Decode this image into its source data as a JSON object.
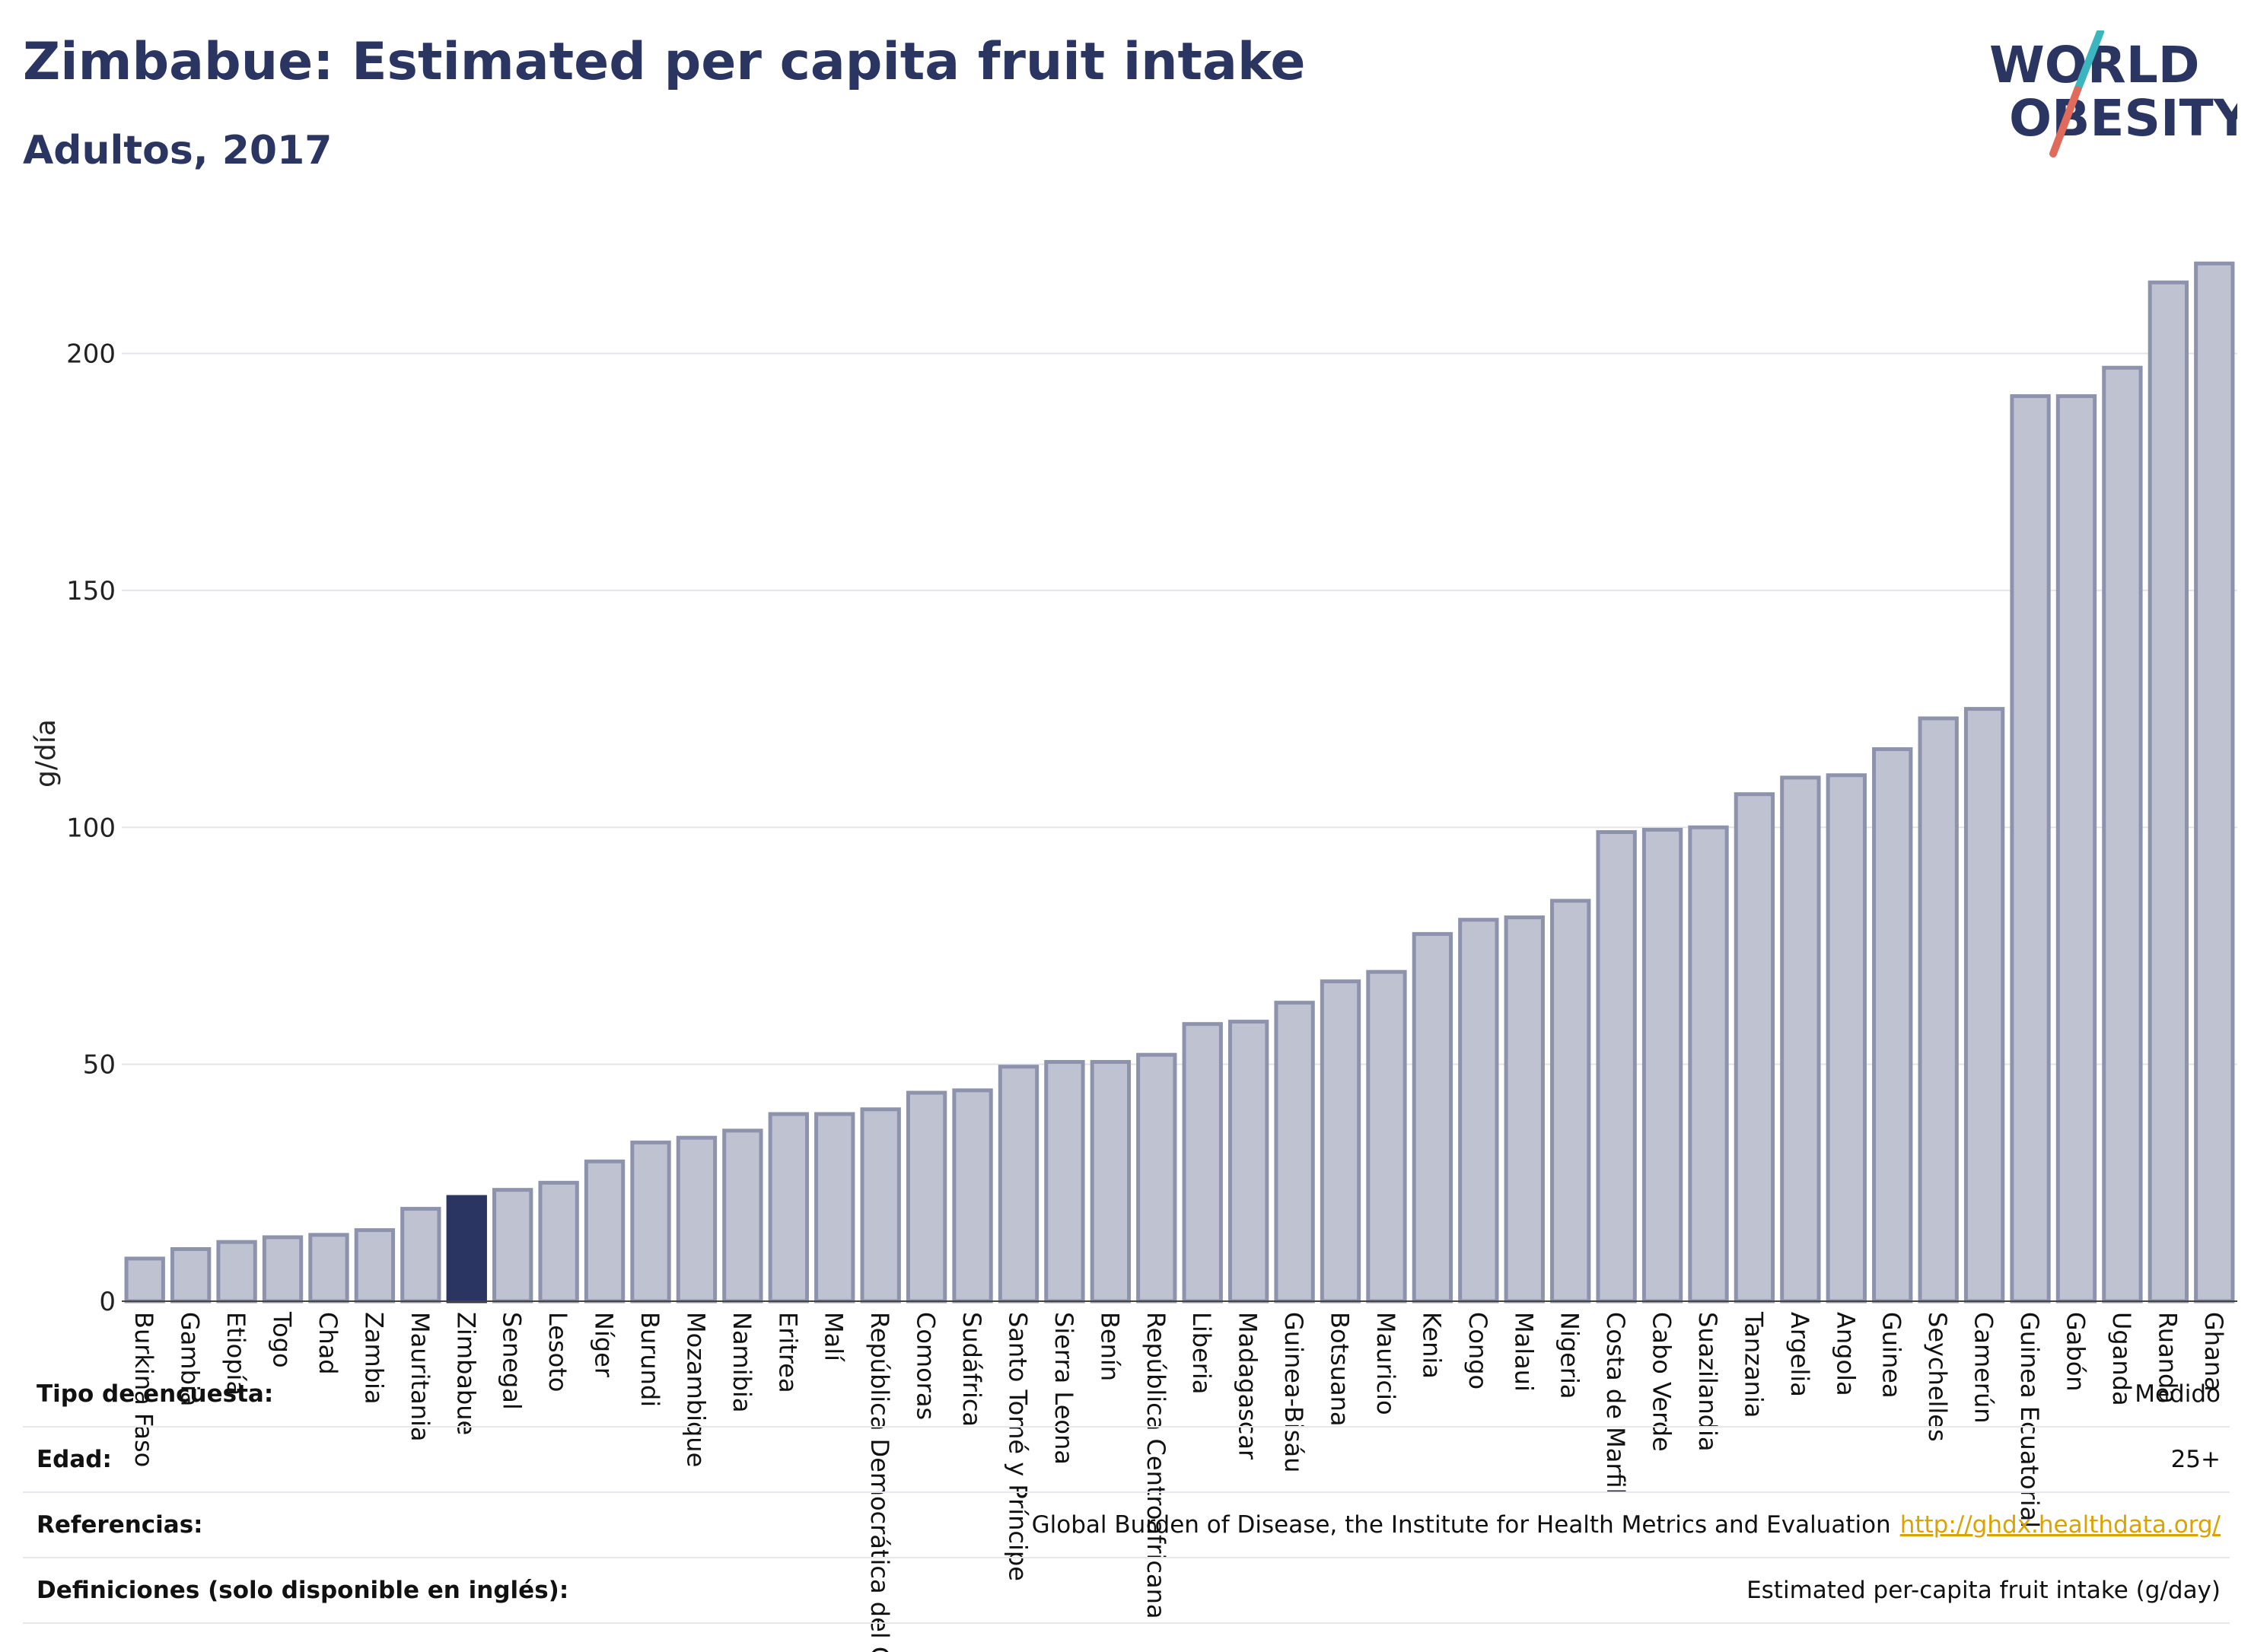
{
  "title": "Zimbabue: Estimated per capita fruit intake",
  "subtitle": "Adultos, 2017",
  "logo": {
    "line1": "WORLD",
    "line2": "OBESITY"
  },
  "colors": {
    "bar": "#bfc2d1",
    "bar_border": "#8e93ad",
    "highlight": "#2b3562",
    "grid": "#e3e5ea"
  },
  "chart_data": {
    "type": "bar",
    "ylabel": "g/día",
    "ylim": [
      0,
      220
    ],
    "yticks": [
      0,
      50,
      100,
      150,
      200
    ],
    "highlight": "Zimbabue",
    "categories": [
      "Burkina Faso",
      "Gambia",
      "Etiopía",
      "Togo",
      "Chad",
      "Zambia",
      "Mauritania",
      "Zimbabue",
      "Senegal",
      "Lesoto",
      "Níger",
      "Burundi",
      "Mozambique",
      "Namibia",
      "Eritrea",
      "Malí",
      "República Democrática del Congo",
      "Comoras",
      "Sudáfrica",
      "Santo Tomé y Príncipe",
      "Sierra Leona",
      "Benín",
      "República Centroafricana",
      "Liberia",
      "Madagascar",
      "Guinea-Bisáu",
      "Botsuana",
      "Mauricio",
      "Kenia",
      "Congo",
      "Malaui",
      "Nigeria",
      "Costa de Marfil",
      "Cabo Verde",
      "Suazilandia",
      "Tanzania",
      "Argelia",
      "Angola",
      "Guinea",
      "Seychelles",
      "Camerún",
      "Guinea Ecuatorial",
      "Gabón",
      "Uganda",
      "Ruanda",
      "Ghana"
    ],
    "values": [
      9,
      11,
      12.5,
      13.5,
      14,
      15,
      19.5,
      22,
      23.5,
      25,
      29.5,
      33.5,
      34.5,
      36,
      39.5,
      39.5,
      40.5,
      44,
      44.5,
      49.5,
      50.5,
      50.5,
      52,
      58.5,
      59,
      63,
      67.5,
      69.5,
      77.5,
      80.5,
      81,
      84.5,
      99,
      99.5,
      100,
      107,
      110.5,
      111,
      116.5,
      123,
      125,
      191,
      191,
      197,
      215,
      219
    ]
  },
  "info": {
    "rows": [
      {
        "key": "Tipo de encuesta:",
        "value": "Medido"
      },
      {
        "key": "Edad:",
        "value": "25+"
      },
      {
        "key": "Referencias:",
        "value": "Global Burden of Disease, the Institute for Health Metrics and Evaluation",
        "link": "http://ghdx.healthdata.org/"
      },
      {
        "key": "Definiciones (solo disponible en inglés):",
        "value": "Estimated per-capita fruit intake (g/day)"
      }
    ]
  }
}
